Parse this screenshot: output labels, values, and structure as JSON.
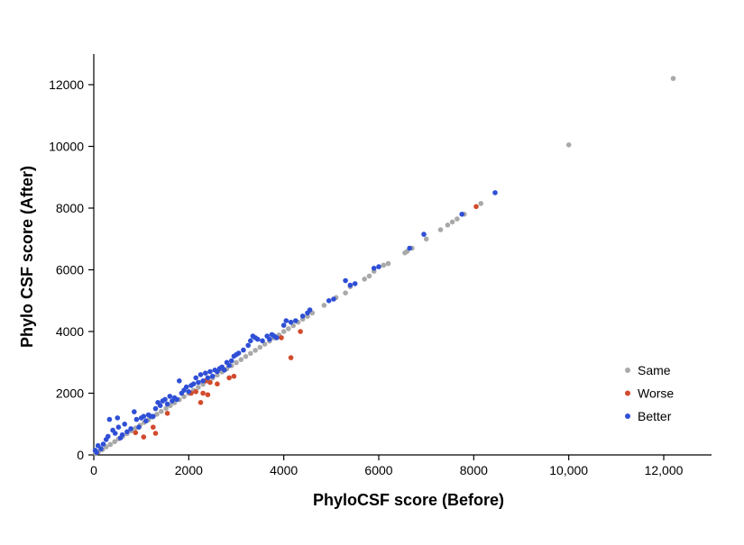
{
  "chart_data": {
    "type": "scatter",
    "xlabel": "PhyloCSF score (Before)",
    "ylabel": "Phylo CSF score (After)",
    "xlim": [
      0,
      13000
    ],
    "ylim": [
      0,
      13000
    ],
    "x_ticks": [
      {
        "value": 0,
        "label": "0"
      },
      {
        "value": 2000,
        "label": "2000"
      },
      {
        "value": 4000,
        "label": "4000"
      },
      {
        "value": 6000,
        "label": "6000"
      },
      {
        "value": 8000,
        "label": "8000"
      },
      {
        "value": 10000,
        "label": "10,000"
      },
      {
        "value": 12000,
        "label": "12,000"
      }
    ],
    "y_ticks": [
      {
        "value": 0,
        "label": "0"
      },
      {
        "value": 2000,
        "label": "2000"
      },
      {
        "value": 4000,
        "label": "4000"
      },
      {
        "value": 6000,
        "label": "6000"
      },
      {
        "value": 8000,
        "label": "8000"
      },
      {
        "value": 10000,
        "label": "10000"
      },
      {
        "value": 12000,
        "label": "12000"
      }
    ],
    "grid": false,
    "legend_position": "bottom-right",
    "series": [
      {
        "name": "Same",
        "color": "#a9a9a9",
        "points": [
          [
            40,
            40
          ],
          [
            100,
            100
          ],
          [
            180,
            170
          ],
          [
            260,
            260
          ],
          [
            350,
            340
          ],
          [
            440,
            430
          ],
          [
            520,
            520
          ],
          [
            610,
            600
          ],
          [
            700,
            690
          ],
          [
            790,
            780
          ],
          [
            880,
            870
          ],
          [
            970,
            960
          ],
          [
            1060,
            1050
          ],
          [
            1150,
            1140
          ],
          [
            1240,
            1230
          ],
          [
            1330,
            1320
          ],
          [
            1420,
            1410
          ],
          [
            1520,
            1510
          ],
          [
            1610,
            1600
          ],
          [
            1700,
            1690
          ],
          [
            1800,
            1790
          ],
          [
            1900,
            1890
          ],
          [
            2000,
            1990
          ],
          [
            2100,
            2090
          ],
          [
            2200,
            2190
          ],
          [
            2300,
            2290
          ],
          [
            2400,
            2390
          ],
          [
            2500,
            2490
          ],
          [
            2600,
            2590
          ],
          [
            2700,
            2690
          ],
          [
            2800,
            2790
          ],
          [
            2900,
            2890
          ],
          [
            3000,
            2990
          ],
          [
            3100,
            3090
          ],
          [
            3200,
            3190
          ],
          [
            3300,
            3290
          ],
          [
            3400,
            3390
          ],
          [
            3500,
            3490
          ],
          [
            3600,
            3590
          ],
          [
            3700,
            3690
          ],
          [
            3800,
            3790
          ],
          [
            3900,
            3890
          ],
          [
            4000,
            4000
          ],
          [
            4100,
            4090
          ],
          [
            4200,
            4190
          ],
          [
            4300,
            4300
          ],
          [
            4400,
            4400
          ],
          [
            4500,
            4490
          ],
          [
            4600,
            4600
          ],
          [
            4850,
            4850
          ],
          [
            5100,
            5100
          ],
          [
            5300,
            5250
          ],
          [
            5400,
            5450
          ],
          [
            5700,
            5700
          ],
          [
            5800,
            5800
          ],
          [
            5900,
            5950
          ],
          [
            6100,
            6150
          ],
          [
            6200,
            6200
          ],
          [
            6550,
            6550
          ],
          [
            6600,
            6600
          ],
          [
            6700,
            6700
          ],
          [
            7000,
            7000
          ],
          [
            7300,
            7300
          ],
          [
            7450,
            7450
          ],
          [
            7550,
            7550
          ],
          [
            7650,
            7650
          ],
          [
            7800,
            7800
          ],
          [
            8150,
            8150
          ],
          [
            10000,
            10050
          ],
          [
            12200,
            12200
          ]
        ]
      },
      {
        "name": "Worse",
        "color": "#d24a2c",
        "points": [
          [
            880,
            720
          ],
          [
            1050,
            580
          ],
          [
            1250,
            900
          ],
          [
            1300,
            700
          ],
          [
            1550,
            1350
          ],
          [
            2050,
            2000
          ],
          [
            2150,
            2050
          ],
          [
            2250,
            1700
          ],
          [
            2300,
            2000
          ],
          [
            2350,
            2400
          ],
          [
            2400,
            1950
          ],
          [
            2450,
            2350
          ],
          [
            2600,
            2300
          ],
          [
            2850,
            2500
          ],
          [
            2950,
            2550
          ],
          [
            3950,
            3800
          ],
          [
            4150,
            3150
          ],
          [
            4350,
            4000
          ],
          [
            8050,
            8050
          ]
        ]
      },
      {
        "name": "Better",
        "color": "#2f4fd6",
        "points": [
          [
            30,
            150
          ],
          [
            60,
            80
          ],
          [
            90,
            300
          ],
          [
            150,
            200
          ],
          [
            200,
            350
          ],
          [
            260,
            500
          ],
          [
            300,
            600
          ],
          [
            330,
            1150
          ],
          [
            400,
            800
          ],
          [
            450,
            700
          ],
          [
            500,
            1200
          ],
          [
            520,
            900
          ],
          [
            560,
            550
          ],
          [
            600,
            650
          ],
          [
            650,
            1000
          ],
          [
            700,
            750
          ],
          [
            780,
            850
          ],
          [
            850,
            1400
          ],
          [
            900,
            1150
          ],
          [
            950,
            900
          ],
          [
            1000,
            1200
          ],
          [
            1050,
            1250
          ],
          [
            1100,
            1100
          ],
          [
            1150,
            1300
          ],
          [
            1200,
            1250
          ],
          [
            1250,
            1250
          ],
          [
            1300,
            1500
          ],
          [
            1350,
            1700
          ],
          [
            1400,
            1600
          ],
          [
            1450,
            1750
          ],
          [
            1500,
            1800
          ],
          [
            1550,
            1650
          ],
          [
            1600,
            1900
          ],
          [
            1650,
            1750
          ],
          [
            1700,
            1850
          ],
          [
            1750,
            1800
          ],
          [
            1800,
            2400
          ],
          [
            1850,
            2000
          ],
          [
            1900,
            2100
          ],
          [
            1950,
            2200
          ],
          [
            2000,
            2050
          ],
          [
            2050,
            2250
          ],
          [
            2100,
            2300
          ],
          [
            2150,
            2500
          ],
          [
            2200,
            2350
          ],
          [
            2250,
            2600
          ],
          [
            2300,
            2400
          ],
          [
            2350,
            2650
          ],
          [
            2400,
            2500
          ],
          [
            2450,
            2700
          ],
          [
            2500,
            2550
          ],
          [
            2550,
            2750
          ],
          [
            2600,
            2700
          ],
          [
            2650,
            2800
          ],
          [
            2700,
            2850
          ],
          [
            2750,
            2750
          ],
          [
            2800,
            3000
          ],
          [
            2850,
            2900
          ],
          [
            2900,
            3050
          ],
          [
            2950,
            3200
          ],
          [
            3000,
            3250
          ],
          [
            3050,
            3300
          ],
          [
            3150,
            3400
          ],
          [
            3250,
            3550
          ],
          [
            3300,
            3700
          ],
          [
            3350,
            3850
          ],
          [
            3400,
            3800
          ],
          [
            3450,
            3750
          ],
          [
            3550,
            3700
          ],
          [
            3650,
            3850
          ],
          [
            3700,
            3750
          ],
          [
            3750,
            3900
          ],
          [
            3800,
            3850
          ],
          [
            3850,
            3800
          ],
          [
            4000,
            4200
          ],
          [
            4050,
            4350
          ],
          [
            4150,
            4300
          ],
          [
            4250,
            4350
          ],
          [
            4400,
            4500
          ],
          [
            4500,
            4600
          ],
          [
            4550,
            4700
          ],
          [
            4950,
            5000
          ],
          [
            5050,
            5050
          ],
          [
            5300,
            5650
          ],
          [
            5400,
            5500
          ],
          [
            5500,
            5550
          ],
          [
            5900,
            6050
          ],
          [
            6000,
            6100
          ],
          [
            6650,
            6700
          ],
          [
            6950,
            7150
          ],
          [
            7750,
            7800
          ],
          [
            8450,
            8500
          ]
        ]
      }
    ]
  }
}
